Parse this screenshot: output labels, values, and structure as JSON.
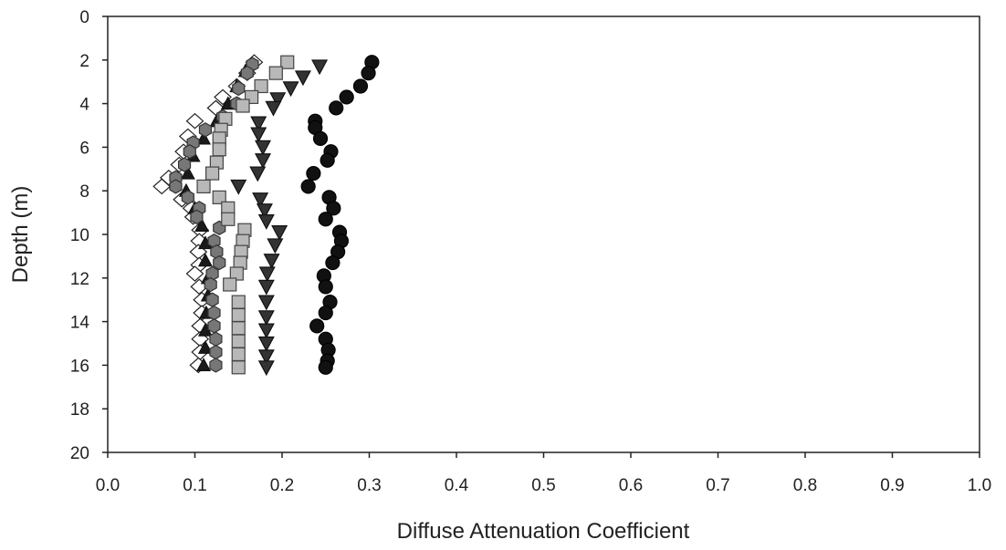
{
  "chart_data": {
    "type": "scatter",
    "title": "",
    "xlabel": "Diffuse Attenuation Coefficient",
    "ylabel": "Depth (m)",
    "xlim": [
      0.0,
      1.0
    ],
    "ylim": [
      0,
      20
    ],
    "y_inverted": true,
    "x_ticks": [
      "0.0",
      "0.1",
      "0.2",
      "0.3",
      "0.4",
      "0.5",
      "0.6",
      "0.7",
      "0.8",
      "0.9",
      "1.0"
    ],
    "y_ticks": [
      "0",
      "2",
      "4",
      "6",
      "8",
      "10",
      "12",
      "14",
      "16",
      "18",
      "20"
    ],
    "grid": false,
    "legend": "none",
    "series": [
      {
        "marker": "diamond-open",
        "color": "#ffffff",
        "stroke": "#222222",
        "points": [
          [
            0.168,
            2.1
          ],
          [
            0.16,
            2.6
          ],
          [
            0.148,
            3.2
          ],
          [
            0.132,
            3.7
          ],
          [
            0.124,
            4.2
          ],
          [
            0.1,
            4.8
          ],
          [
            0.092,
            5.5
          ],
          [
            0.087,
            6.2
          ],
          [
            0.082,
            6.8
          ],
          [
            0.07,
            7.4
          ],
          [
            0.062,
            7.8
          ],
          [
            0.085,
            8.4
          ],
          [
            0.096,
            8.8
          ],
          [
            0.098,
            9.2
          ],
          [
            0.106,
            9.8
          ],
          [
            0.105,
            10.3
          ],
          [
            0.104,
            10.8
          ],
          [
            0.105,
            11.4
          ],
          [
            0.1,
            11.8
          ],
          [
            0.105,
            12.4
          ],
          [
            0.108,
            13.0
          ],
          [
            0.108,
            13.6
          ],
          [
            0.106,
            14.2
          ],
          [
            0.106,
            14.8
          ],
          [
            0.106,
            15.4
          ],
          [
            0.104,
            16.0
          ]
        ]
      },
      {
        "marker": "triangle-up",
        "color": "#1a1a1a",
        "stroke": "#111111",
        "points": [
          [
            0.158,
            2.5
          ],
          [
            0.148,
            3.2
          ],
          [
            0.138,
            4.0
          ],
          [
            0.125,
            4.8
          ],
          [
            0.11,
            5.6
          ],
          [
            0.098,
            6.4
          ],
          [
            0.092,
            7.2
          ],
          [
            0.09,
            8.0
          ],
          [
            0.1,
            8.8
          ],
          [
            0.108,
            9.6
          ],
          [
            0.112,
            10.4
          ],
          [
            0.112,
            11.2
          ],
          [
            0.115,
            12.0
          ],
          [
            0.115,
            12.8
          ],
          [
            0.113,
            13.6
          ],
          [
            0.112,
            14.4
          ],
          [
            0.112,
            15.2
          ],
          [
            0.11,
            16.0
          ]
        ]
      },
      {
        "marker": "hexagon",
        "color": "#777777",
        "stroke": "#333333",
        "points": [
          [
            0.166,
            2.2
          ],
          [
            0.16,
            2.6
          ],
          [
            0.15,
            3.3
          ],
          [
            0.148,
            4.0
          ],
          [
            0.132,
            4.6
          ],
          [
            0.112,
            5.2
          ],
          [
            0.098,
            5.8
          ],
          [
            0.094,
            6.2
          ],
          [
            0.088,
            6.8
          ],
          [
            0.078,
            7.4
          ],
          [
            0.078,
            7.8
          ],
          [
            0.092,
            8.3
          ],
          [
            0.105,
            8.8
          ],
          [
            0.102,
            9.2
          ],
          [
            0.128,
            9.7
          ],
          [
            0.122,
            10.3
          ],
          [
            0.125,
            10.8
          ],
          [
            0.128,
            11.3
          ],
          [
            0.12,
            11.8
          ],
          [
            0.118,
            12.3
          ],
          [
            0.12,
            13.0
          ],
          [
            0.122,
            13.6
          ],
          [
            0.122,
            14.2
          ],
          [
            0.124,
            14.8
          ],
          [
            0.124,
            15.4
          ],
          [
            0.124,
            16.0
          ]
        ]
      },
      {
        "marker": "square",
        "color": "#b8b8b8",
        "stroke": "#444444",
        "points": [
          [
            0.206,
            2.1
          ],
          [
            0.193,
            2.6
          ],
          [
            0.176,
            3.2
          ],
          [
            0.165,
            3.7
          ],
          [
            0.155,
            4.1
          ],
          [
            0.135,
            4.7
          ],
          [
            0.13,
            5.2
          ],
          [
            0.128,
            5.6
          ],
          [
            0.128,
            6.1
          ],
          [
            0.125,
            6.7
          ],
          [
            0.12,
            7.2
          ],
          [
            0.11,
            7.8
          ],
          [
            0.128,
            8.3
          ],
          [
            0.138,
            8.8
          ],
          [
            0.138,
            9.3
          ],
          [
            0.157,
            9.8
          ],
          [
            0.155,
            10.3
          ],
          [
            0.153,
            10.8
          ],
          [
            0.152,
            11.3
          ],
          [
            0.148,
            11.8
          ],
          [
            0.14,
            12.3
          ],
          [
            0.15,
            13.1
          ],
          [
            0.15,
            13.7
          ],
          [
            0.15,
            14.3
          ],
          [
            0.15,
            14.9
          ],
          [
            0.15,
            15.5
          ],
          [
            0.15,
            16.1
          ]
        ]
      },
      {
        "marker": "triangle-down",
        "color": "#333333",
        "stroke": "#111111",
        "points": [
          [
            0.243,
            2.3
          ],
          [
            0.224,
            2.8
          ],
          [
            0.21,
            3.3
          ],
          [
            0.195,
            3.8
          ],
          [
            0.19,
            4.2
          ],
          [
            0.173,
            4.9
          ],
          [
            0.173,
            5.4
          ],
          [
            0.178,
            6.0
          ],
          [
            0.178,
            6.6
          ],
          [
            0.172,
            7.2
          ],
          [
            0.15,
            7.8
          ],
          [
            0.175,
            8.4
          ],
          [
            0.18,
            8.9
          ],
          [
            0.182,
            9.4
          ],
          [
            0.197,
            9.9
          ],
          [
            0.192,
            10.5
          ],
          [
            0.188,
            11.2
          ],
          [
            0.183,
            11.8
          ],
          [
            0.182,
            12.4
          ],
          [
            0.182,
            13.1
          ],
          [
            0.182,
            13.8
          ],
          [
            0.182,
            14.4
          ],
          [
            0.182,
            15.0
          ],
          [
            0.182,
            15.6
          ],
          [
            0.182,
            16.1
          ]
        ]
      },
      {
        "marker": "circle",
        "color": "#111111",
        "stroke": "#000000",
        "points": [
          [
            0.303,
            2.1
          ],
          [
            0.299,
            2.6
          ],
          [
            0.29,
            3.2
          ],
          [
            0.274,
            3.7
          ],
          [
            0.262,
            4.2
          ],
          [
            0.238,
            4.8
          ],
          [
            0.238,
            5.1
          ],
          [
            0.244,
            5.6
          ],
          [
            0.256,
            6.2
          ],
          [
            0.252,
            6.6
          ],
          [
            0.236,
            7.2
          ],
          [
            0.23,
            7.8
          ],
          [
            0.254,
            8.3
          ],
          [
            0.259,
            8.8
          ],
          [
            0.25,
            9.3
          ],
          [
            0.266,
            9.9
          ],
          [
            0.268,
            10.3
          ],
          [
            0.264,
            10.8
          ],
          [
            0.258,
            11.3
          ],
          [
            0.248,
            11.9
          ],
          [
            0.25,
            12.4
          ],
          [
            0.255,
            13.1
          ],
          [
            0.25,
            13.6
          ],
          [
            0.24,
            14.2
          ],
          [
            0.25,
            14.8
          ],
          [
            0.253,
            15.3
          ],
          [
            0.252,
            15.8
          ],
          [
            0.25,
            16.1
          ]
        ]
      }
    ]
  }
}
